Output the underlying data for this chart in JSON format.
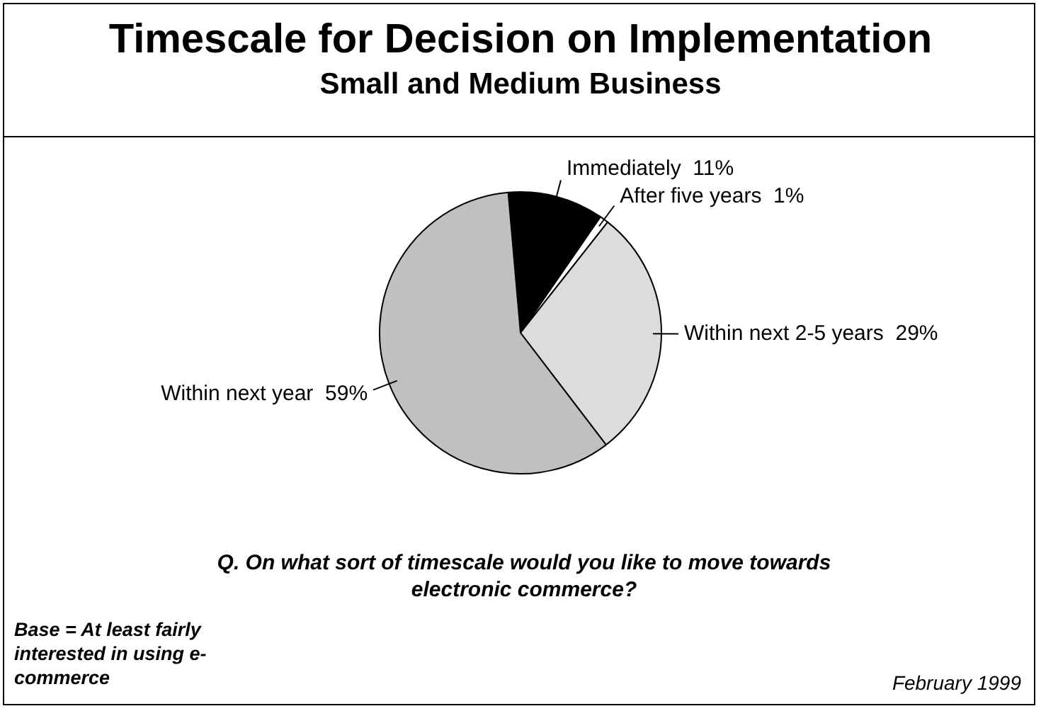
{
  "chart_data": {
    "type": "pie",
    "title": "Timescale for Decision on Implementation",
    "subtitle": "Small and Medium Business",
    "categories": [
      "Immediately",
      "After five years",
      "Within next 2-5 years",
      "Within next year"
    ],
    "values": [
      11,
      1,
      29,
      59
    ],
    "value_labels": [
      "11%",
      "1%",
      "29%",
      "59%"
    ],
    "colors": [
      "#000000",
      "#ffffff",
      "#dcdcdc",
      "#c0c0c0"
    ],
    "legend": false,
    "annotations": [
      "Q. On what sort of timescale would you like to move towards electronic commerce?",
      "Base = At least fairly interested in using e-commerce",
      "February 1999"
    ]
  }
}
